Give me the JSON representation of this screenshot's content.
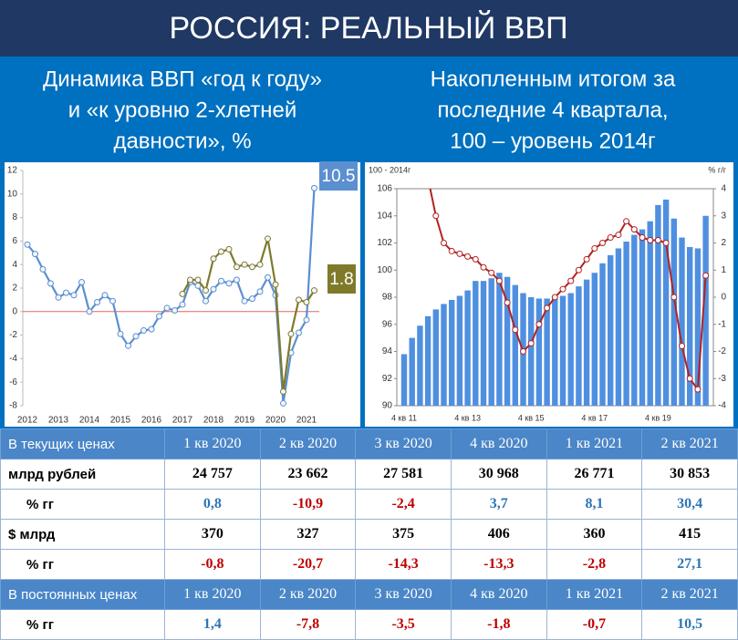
{
  "header": {
    "title": "РОССИЯ: РЕАЛЬНЫЙ ВВП"
  },
  "chart_data": [
    {
      "type": "line",
      "subtitle": [
        "Динамика ВВП «год к году»",
        "и «к уровню 2-хлетней",
        "давности», %"
      ],
      "categories": [
        "2012",
        null,
        null,
        null,
        "2013",
        null,
        null,
        null,
        "2014",
        null,
        null,
        null,
        "2015",
        null,
        null,
        null,
        "2016",
        null,
        null,
        null,
        "2017",
        null,
        null,
        null,
        "2018",
        null,
        null,
        null,
        "2019",
        null,
        null,
        null,
        "2020",
        null,
        null,
        null,
        "2021",
        null
      ],
      "series": [
        {
          "color": "#5b8fd0",
          "values": [
            5.7,
            4.9,
            3.6,
            2.4,
            1.2,
            1.6,
            1.4,
            2.5,
            0.0,
            0.8,
            1.4,
            0.9,
            -1.9,
            -2.9,
            -2.1,
            -1.6,
            -1.5,
            -0.4,
            0.3,
            0.1,
            0.6,
            2.5,
            2.2,
            0.9,
            1.9,
            2.6,
            2.4,
            2.7,
            0.9,
            1.1,
            1.7,
            2.9,
            1.4,
            -7.8,
            -3.5,
            -1.8,
            -0.7,
            10.5
          ]
        },
        {
          "color": "#7f7a2a",
          "values": [
            null,
            null,
            null,
            null,
            null,
            null,
            null,
            null,
            null,
            null,
            null,
            null,
            null,
            null,
            null,
            null,
            null,
            null,
            null,
            null,
            1.5,
            2.7,
            2.7,
            1.8,
            4.5,
            5.1,
            5.3,
            3.8,
            4.0,
            3.8,
            4.0,
            6.2,
            2.3,
            -6.8,
            -1.9,
            1.0,
            0.8,
            1.8
          ]
        }
      ],
      "ylim": [
        -8,
        12
      ],
      "yticks": [
        -8,
        -6,
        -4,
        -2,
        0,
        2,
        4,
        6,
        8,
        10,
        12
      ],
      "zero_line_color": "#e06666",
      "end_labels": true
    },
    {
      "type": "bar",
      "subtitle": [
        "Накопленным итогом за",
        "последние 4 квартала,",
        "100 – уровень 2014г"
      ],
      "y_label": "100 - 2014г",
      "y2_label": "% г/г",
      "categories": [
        "4 кв 11",
        null,
        null,
        null,
        null,
        null,
        null,
        null,
        "4 кв 13",
        null,
        null,
        null,
        null,
        null,
        null,
        null,
        "4 кв 15",
        null,
        null,
        null,
        null,
        null,
        null,
        null,
        "4 кв 17",
        null,
        null,
        null,
        null,
        null,
        null,
        null,
        "4 кв 19",
        null,
        null,
        null,
        null,
        null,
        null
      ],
      "series": [
        {
          "type": "bar",
          "color": "#4f8fe0",
          "values": [
            93.8,
            95.0,
            95.9,
            96.6,
            97.1,
            97.5,
            97.8,
            98.1,
            98.5,
            99.2,
            99.2,
            99.4,
            99.8,
            99.5,
            98.9,
            98.3,
            98.0,
            97.9,
            97.9,
            98.0,
            98.1,
            98.3,
            98.8,
            99.3,
            99.8,
            100.5,
            101.1,
            101.6,
            102.1,
            102.6,
            103.0,
            103.6,
            104.8,
            105.2,
            103.8,
            102.4,
            101.7,
            101.6,
            104.0
          ]
        },
        {
          "type": "line",
          "axis": "y2",
          "color": "#b22222",
          "values": [
            null,
            null,
            null,
            4.4,
            3.0,
            2.0,
            1.7,
            1.6,
            1.5,
            1.4,
            1.1,
            0.9,
            0.6,
            -0.2,
            -1.2,
            -2.0,
            -1.7,
            -1.0,
            -0.4,
            0.0,
            0.3,
            0.6,
            1.0,
            1.4,
            1.8,
            2.0,
            2.2,
            2.3,
            2.8,
            2.5,
            2.2,
            2.1,
            2.1,
            2.0,
            0.0,
            -1.8,
            -3.0,
            -3.4,
            0.8
          ]
        }
      ],
      "ylim": [
        90,
        106
      ],
      "yticks": [
        90,
        92,
        94,
        96,
        98,
        100,
        102,
        104,
        106
      ],
      "y2lim": [
        -4,
        4
      ],
      "y2ticks": [
        -4,
        -3,
        -2,
        -1,
        0,
        1,
        2,
        3,
        4
      ]
    }
  ],
  "table": {
    "sections": [
      {
        "header": [
          "В текущих ценах",
          "1 кв 2020",
          "2 кв 2020",
          "3 кв 2020",
          "4 кв 2020",
          "1 кв 2021",
          "2 кв 2021"
        ],
        "rows": [
          {
            "cells": [
              "млрд рублей",
              "24 757",
              "23 662",
              "27 581",
              "30 968",
              "26 771",
              "30 853"
            ]
          },
          {
            "colored": true,
            "cells": [
              "% гг",
              "0,8",
              "-10,9",
              "-2,4",
              "3,7",
              "8,1",
              "30,4"
            ]
          },
          {
            "cells": [
              "$ млрд",
              "370",
              "327",
              "375",
              "406",
              "360",
              "415"
            ]
          },
          {
            "colored": true,
            "cells": [
              "% гг",
              "-0,8",
              "-20,7",
              "-14,3",
              "-13,3",
              "-2,8",
              "27,1"
            ]
          }
        ]
      },
      {
        "header": [
          "В постоянных ценах",
          "1 кв 2020",
          "2 кв 2020",
          "3 кв 2020",
          "4 кв 2020",
          "1 кв 2021",
          "2 кв 2021"
        ],
        "rows": [
          {
            "colored": true,
            "cells": [
              "% гг",
              "1,4",
              "-7,8",
              "-3,5",
              "-1,8",
              "-0,7",
              "10,5"
            ]
          }
        ]
      }
    ]
  }
}
